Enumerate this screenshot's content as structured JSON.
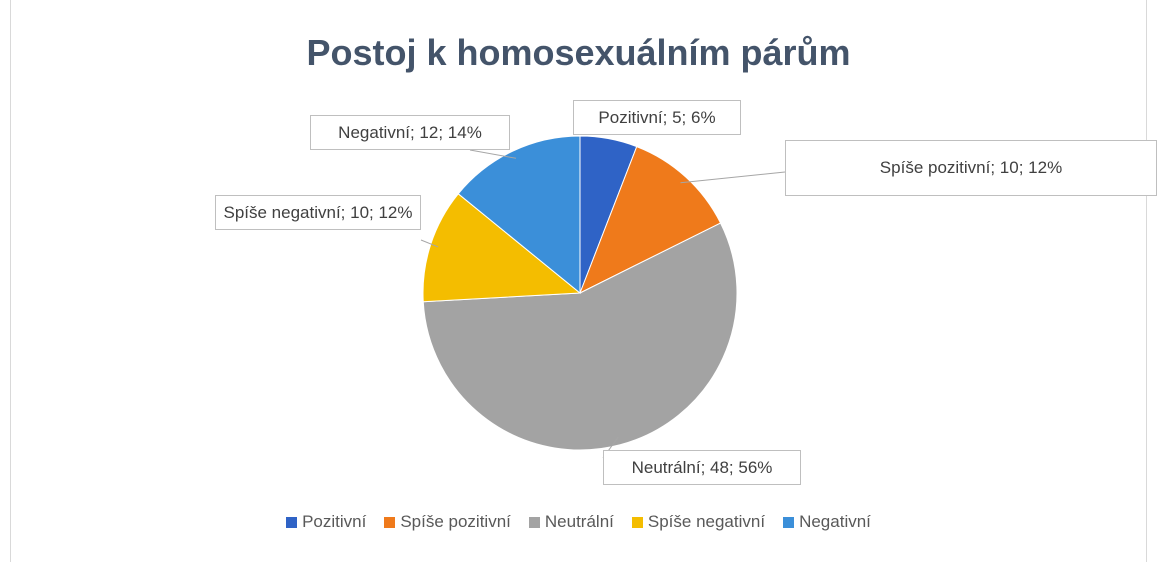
{
  "chart_data": {
    "type": "pie",
    "title": "Postoj k homosexuálním párům",
    "categories": [
      "Pozitivní",
      "Spíše pozitivní",
      "Neutrální",
      "Spíše negativní",
      "Negativní"
    ],
    "values": [
      5,
      10,
      48,
      10,
      12
    ],
    "value_labels": [
      "Pozitivní; 5; 6%",
      "Spíše pozitivní; 10; 12%",
      "Neutrální; 48; 56%",
      "Spíše negativní; 10; 12%",
      "Negativní; 12; 14%"
    ],
    "colors": [
      "#2f63c6",
      "#ef7a1b",
      "#a3a3a3",
      "#f4bd00",
      "#3b8fd9"
    ],
    "legend": "bottom"
  }
}
